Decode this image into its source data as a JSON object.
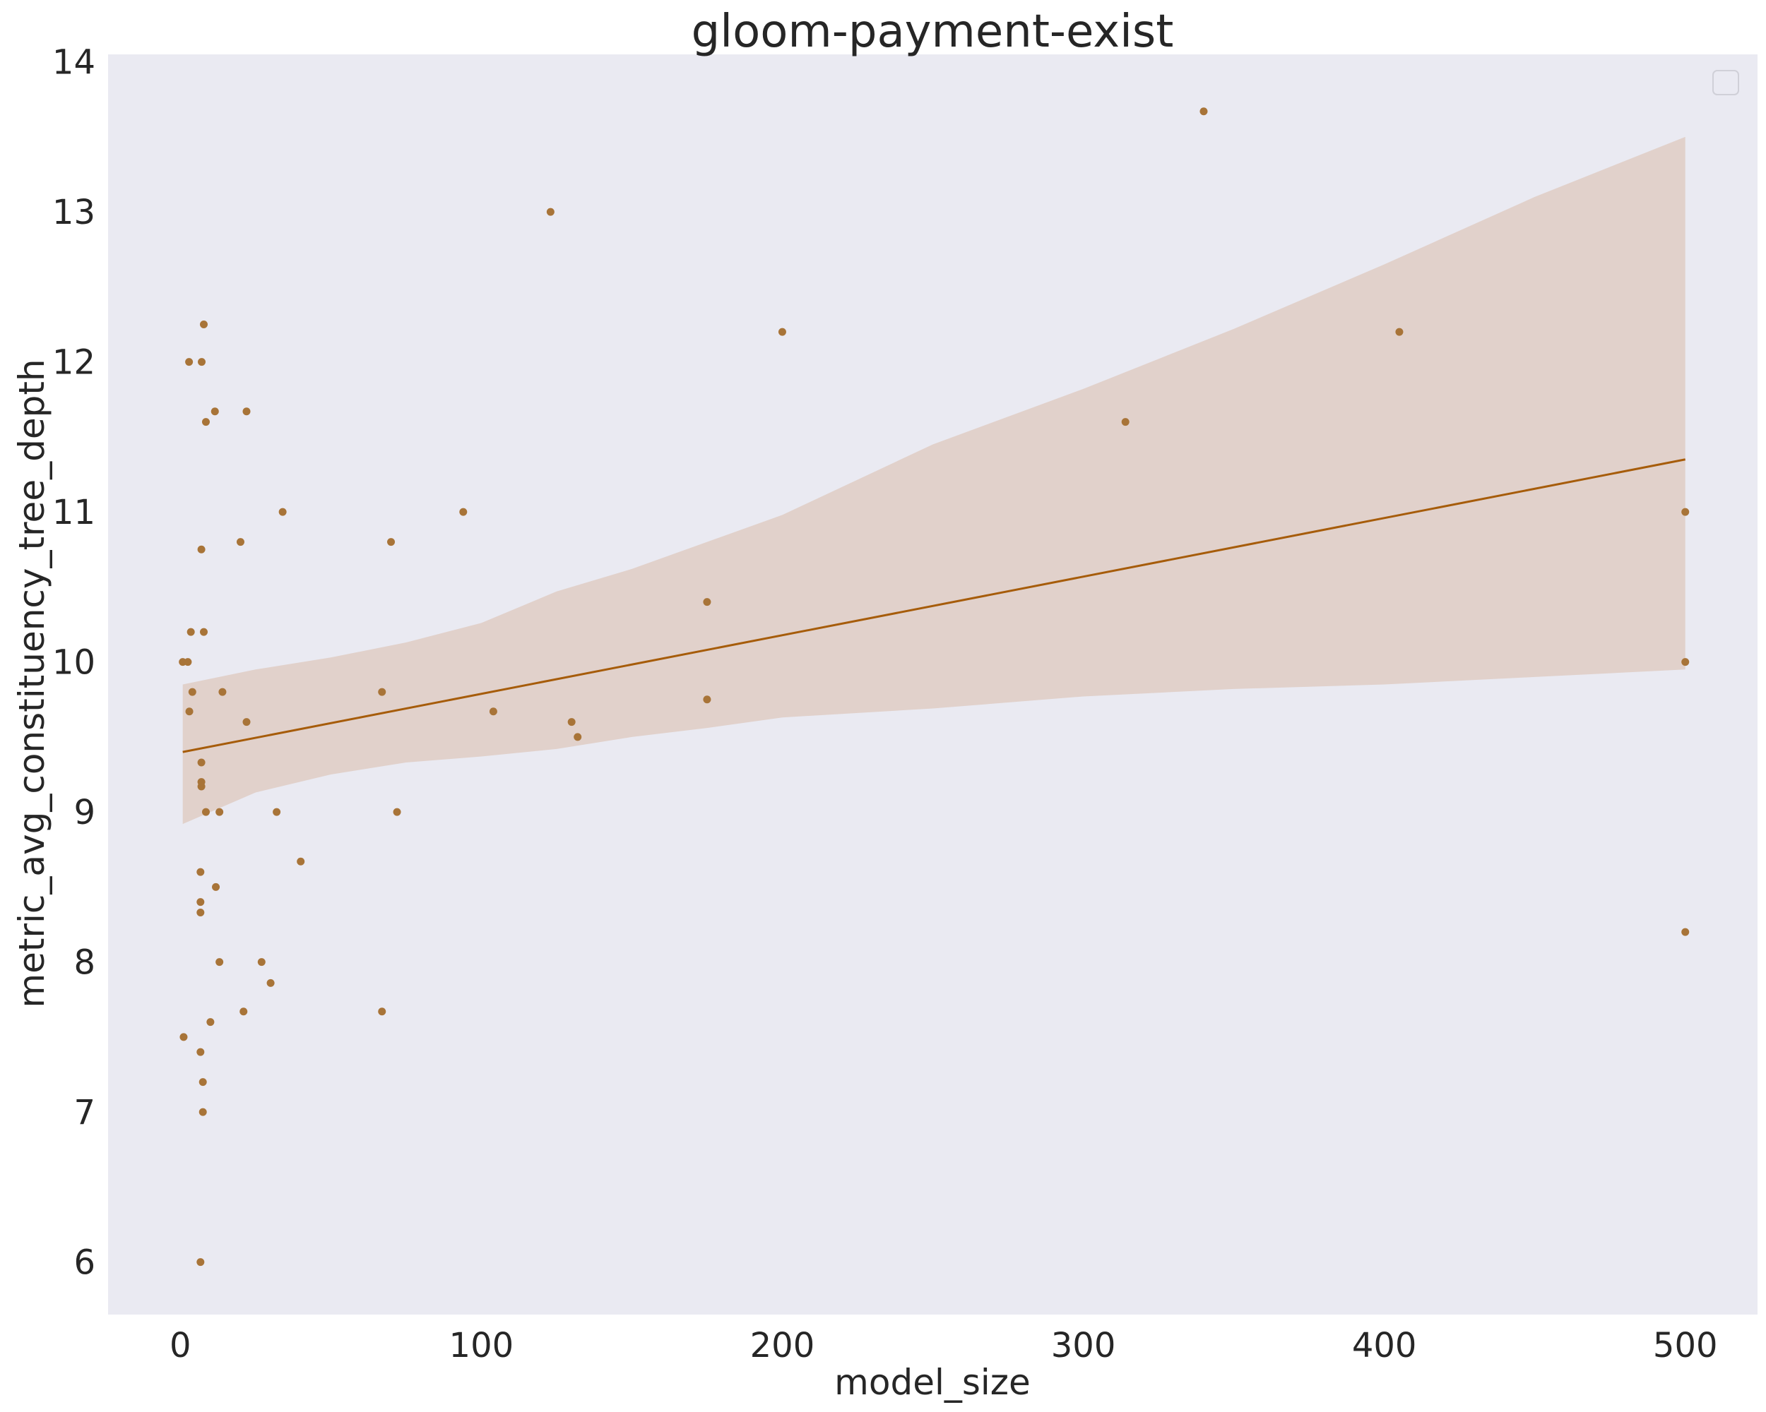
{
  "chart_data": {
    "type": "scatter",
    "title": "gloom-payment-exist",
    "xlabel": "model_size",
    "ylabel": "metric_avg_constituency_tree_depth",
    "xlim": [
      -24,
      524
    ],
    "ylim": [
      5.65,
      14.05
    ],
    "xticks": [
      0,
      100,
      200,
      300,
      400,
      500
    ],
    "yticks": [
      6,
      7,
      8,
      9,
      10,
      11,
      12,
      13,
      14
    ],
    "grid": false,
    "legend": {
      "location": "top-right",
      "entries": []
    },
    "colors": {
      "background": "#eaeaf2",
      "points": "#a87438",
      "line": "#a65c0a",
      "band": "#decbc0",
      "band_opacity": 0.8
    },
    "points": [
      {
        "x": 0.8,
        "y": 10.0
      },
      {
        "x": 1.1,
        "y": 7.5
      },
      {
        "x": 2.5,
        "y": 10.0
      },
      {
        "x": 2.9,
        "y": 12.0
      },
      {
        "x": 3.0,
        "y": 9.67
      },
      {
        "x": 3.5,
        "y": 10.2
      },
      {
        "x": 4.0,
        "y": 9.8
      },
      {
        "x": 6.7,
        "y": 6.0
      },
      {
        "x": 6.7,
        "y": 7.4
      },
      {
        "x": 6.7,
        "y": 8.33
      },
      {
        "x": 6.7,
        "y": 8.4
      },
      {
        "x": 6.7,
        "y": 8.6
      },
      {
        "x": 7.0,
        "y": 9.17
      },
      {
        "x": 7.0,
        "y": 9.2
      },
      {
        "x": 7.0,
        "y": 9.33
      },
      {
        "x": 7.0,
        "y": 10.75
      },
      {
        "x": 7.1,
        "y": 12.0
      },
      {
        "x": 7.5,
        "y": 7.0
      },
      {
        "x": 7.5,
        "y": 7.2
      },
      {
        "x": 7.8,
        "y": 12.25
      },
      {
        "x": 7.8,
        "y": 10.2
      },
      {
        "x": 8.5,
        "y": 11.6
      },
      {
        "x": 8.5,
        "y": 9.0
      },
      {
        "x": 10.0,
        "y": 7.6
      },
      {
        "x": 11.5,
        "y": 11.67
      },
      {
        "x": 11.8,
        "y": 8.5
      },
      {
        "x": 13.0,
        "y": 9.0
      },
      {
        "x": 13.0,
        "y": 8.0
      },
      {
        "x": 14.0,
        "y": 9.8
      },
      {
        "x": 20.0,
        "y": 10.8
      },
      {
        "x": 21.0,
        "y": 7.67
      },
      {
        "x": 22.0,
        "y": 9.6
      },
      {
        "x": 22.0,
        "y": 11.67
      },
      {
        "x": 27.0,
        "y": 8.0
      },
      {
        "x": 30.0,
        "y": 7.86
      },
      {
        "x": 32.0,
        "y": 9.0
      },
      {
        "x": 34.0,
        "y": 11.0
      },
      {
        "x": 40.0,
        "y": 8.67
      },
      {
        "x": 67.0,
        "y": 9.8
      },
      {
        "x": 67.0,
        "y": 7.67
      },
      {
        "x": 70.0,
        "y": 10.8
      },
      {
        "x": 72.0,
        "y": 9.0
      },
      {
        "x": 94.0,
        "y": 11.0
      },
      {
        "x": 104.0,
        "y": 9.67
      },
      {
        "x": 123.0,
        "y": 13.0
      },
      {
        "x": 130.0,
        "y": 9.6
      },
      {
        "x": 132.0,
        "y": 9.5
      },
      {
        "x": 175.0,
        "y": 10.4
      },
      {
        "x": 175.0,
        "y": 9.75
      },
      {
        "x": 200.0,
        "y": 12.2
      },
      {
        "x": 314.0,
        "y": 11.6
      },
      {
        "x": 340.0,
        "y": 13.67
      },
      {
        "x": 405.0,
        "y": 12.2
      },
      {
        "x": 500.0,
        "y": 11.0
      },
      {
        "x": 500.0,
        "y": 10.0
      },
      {
        "x": 500.0,
        "y": 8.2
      }
    ],
    "regression": {
      "x": [
        0.8,
        500
      ],
      "y": [
        9.4,
        11.35
      ]
    },
    "confidence_band": {
      "x": [
        0.8,
        25,
        50,
        75,
        100,
        125,
        150,
        175,
        200,
        250,
        300,
        350,
        400,
        450,
        500
      ],
      "upper": [
        9.85,
        9.95,
        10.03,
        10.13,
        10.26,
        10.47,
        10.62,
        10.8,
        10.98,
        11.45,
        11.82,
        12.22,
        12.65,
        13.1,
        13.5
      ],
      "lower": [
        8.92,
        9.13,
        9.25,
        9.33,
        9.37,
        9.42,
        9.5,
        9.56,
        9.63,
        9.69,
        9.77,
        9.82,
        9.85,
        9.9,
        9.95
      ]
    }
  }
}
